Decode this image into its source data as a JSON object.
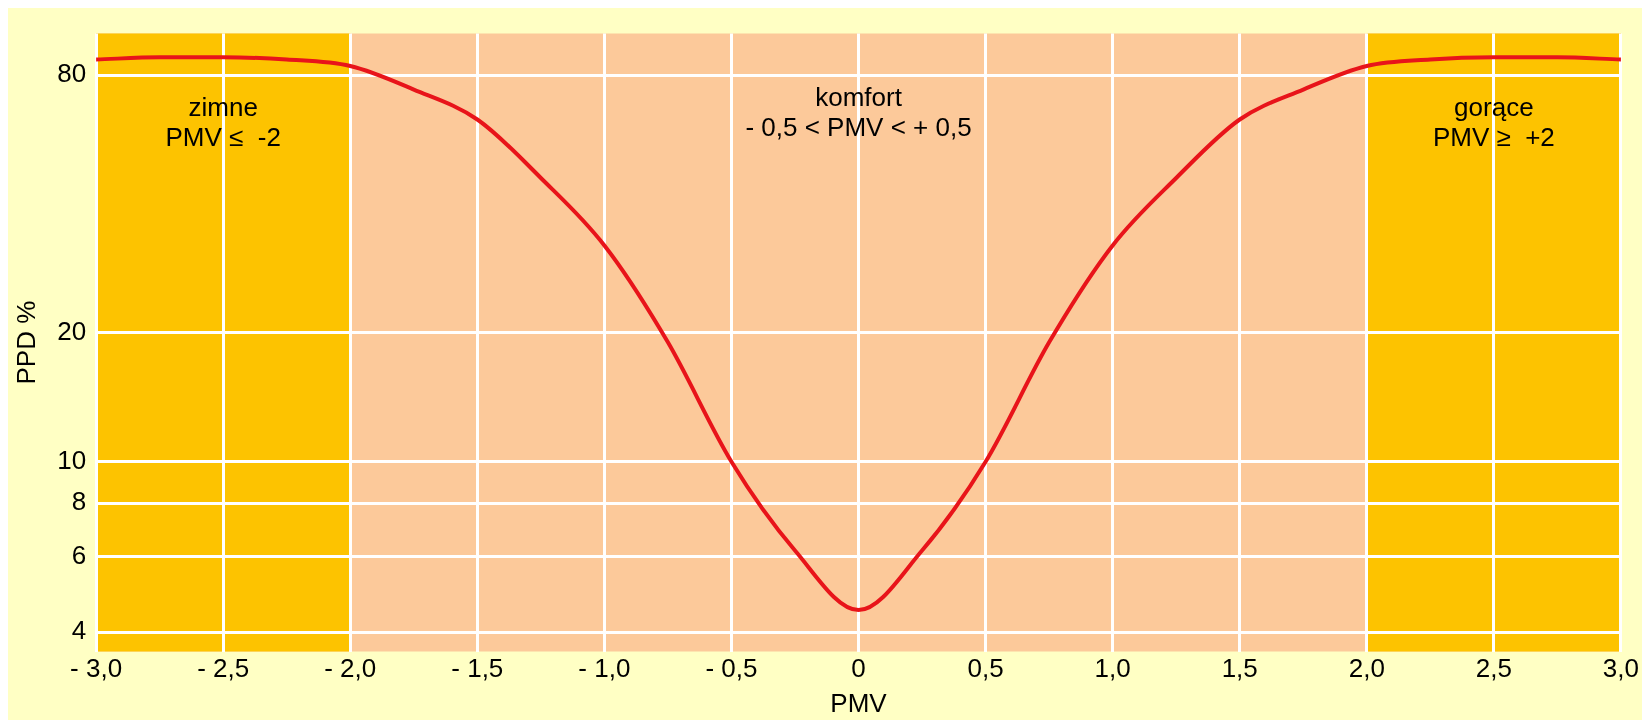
{
  "chart_data": {
    "type": "line",
    "xlabel": "PMV",
    "ylabel": "PPD %",
    "x": [
      -3,
      -2.75,
      -2.5,
      -2.25,
      -2,
      -1.75,
      -1.5,
      -1.25,
      -1,
      -0.75,
      -0.5,
      -0.25,
      0,
      0.25,
      0.5,
      0.75,
      1,
      1.25,
      1.5,
      1.75,
      2,
      2.25,
      2.5,
      2.75,
      3
    ],
    "series": [
      {
        "color": "#e8141a",
        "values": [
          87,
          88,
          88,
          87,
          84,
          74,
          63,
          46,
          32,
          19,
          10,
          6.2,
          4.5,
          6.2,
          10,
          19,
          32,
          46,
          63,
          74,
          84,
          87,
          88,
          88,
          87
        ]
      }
    ],
    "xlim": [
      -3,
      3
    ],
    "ylim": [
      3.6,
      100
    ],
    "log": "y",
    "xticks": [
      {
        "value": -3,
        "label": "- 3,0"
      },
      {
        "value": -2.5,
        "label": "- 2,5"
      },
      {
        "value": -2,
        "label": "- 2,0"
      },
      {
        "value": -1.5,
        "label": "- 1,5"
      },
      {
        "value": -1,
        "label": "- 1,0"
      },
      {
        "value": -0.5,
        "label": "- 0,5"
      },
      {
        "value": 0,
        "label": "0"
      },
      {
        "value": 0.5,
        "label": "0,5"
      },
      {
        "value": 1,
        "label": "1,0"
      },
      {
        "value": 1.5,
        "label": "1,5"
      },
      {
        "value": 2,
        "label": "2,0"
      },
      {
        "value": 2.5,
        "label": "2,5"
      },
      {
        "value": 3,
        "label": "3,0"
      }
    ],
    "yticks": [
      4,
      6,
      8,
      10,
      20,
      80
    ],
    "grid": true,
    "legend": false,
    "marker": "none",
    "line_style": "solid",
    "bands": [
      {
        "axis": "x",
        "from": -3,
        "to": -2,
        "color": "#fdc300",
        "label": "zimne\nPMV ≤  -2"
      },
      {
        "axis": "x",
        "from": 2,
        "to": 3,
        "color": "#fdc300",
        "label": "gorące\nPMV ≥  +2"
      }
    ],
    "annotations": [
      "komfort\n- 0,5 < PMV < + 0,5"
    ]
  }
}
